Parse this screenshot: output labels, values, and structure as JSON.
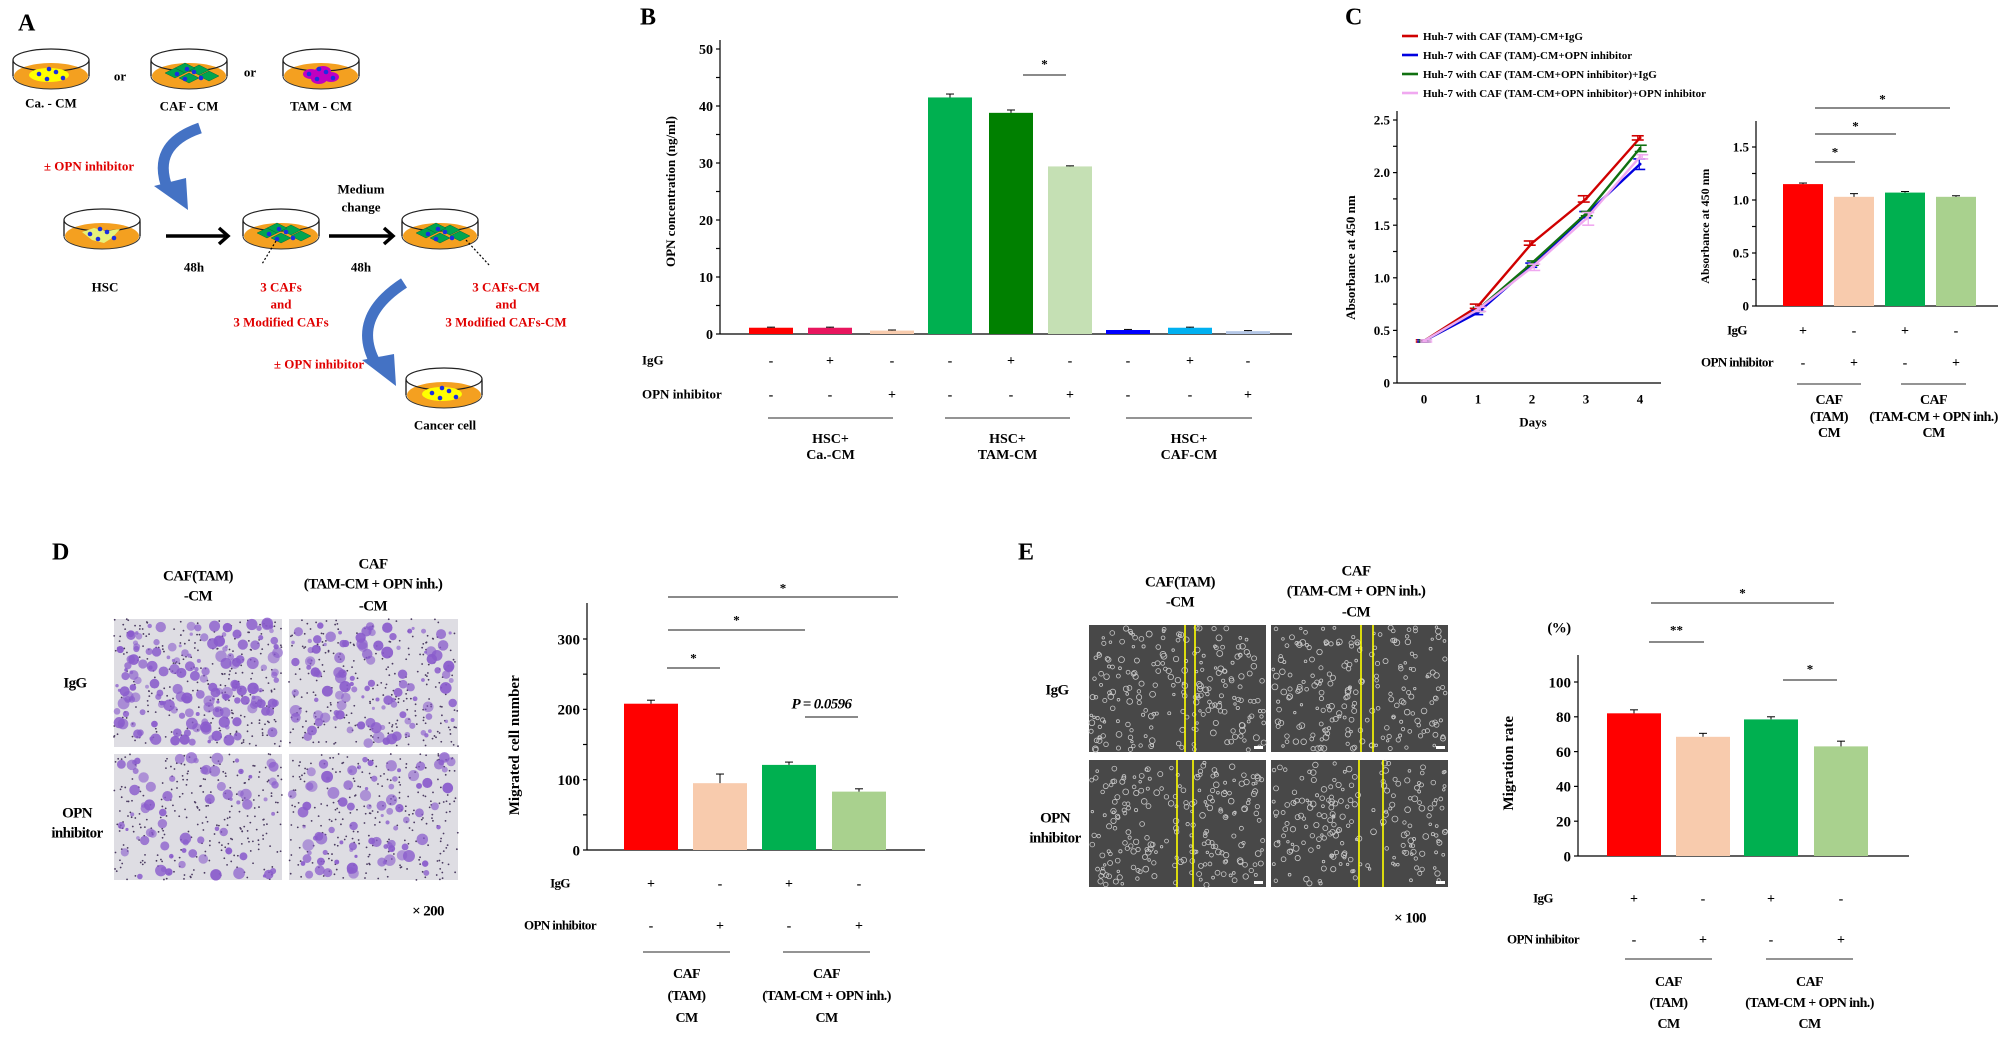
{
  "panel_a": {
    "letter": "A",
    "dishes": [
      "Ca. - CM",
      "CAF - CM",
      "TAM - CM"
    ],
    "or": "or",
    "opn_inhibitor_1": "± OPN inhibitor",
    "hsc": "HSC",
    "time1": "48h",
    "medium_change": [
      "Medium",
      "change"
    ],
    "time2": "48h",
    "cafs": [
      "3 CAFs",
      "and",
      "3 Modified CAFs"
    ],
    "cafs_cm": [
      "3 CAFs-CM",
      "and",
      "3 Modified CAFs-CM"
    ],
    "opn_inhibitor_2": "± OPN inhibitor",
    "cancer_cell": "Cancer cell",
    "colors": {
      "medium": "#f4a020",
      "arrow": "#4472c4",
      "text_highlight": "#e00000",
      "nucleus": "#1a2ee0"
    }
  },
  "panel_b": {
    "letter": "B"
  },
  "panel_c": {
    "letter": "C"
  },
  "panel_d": {
    "letter": "D",
    "columns": [
      [
        "CAF(TAM)",
        "-CM"
      ],
      [
        "CAF",
        "(TAM-CM + OPN inh.)",
        "-CM"
      ]
    ],
    "rows": [
      [
        "IgG"
      ],
      [
        "OPN",
        "inhibitor"
      ]
    ],
    "magnification": "× 200"
  },
  "panel_e": {
    "letter": "E",
    "columns": [
      [
        "CAF(TAM)",
        "-CM"
      ],
      [
        "CAF",
        "(TAM-CM + OPN inh.)",
        "-CM"
      ]
    ],
    "rows": [
      [
        "IgG"
      ],
      [
        "OPN",
        "inhibitor"
      ]
    ],
    "magnification": "× 100",
    "unit": "(%)"
  },
  "chart_data": [
    {
      "panel": "B",
      "type": "bar",
      "ylabel": "OPN concentration (ng/ml)",
      "ylim": [
        0,
        50
      ],
      "yticks": [
        0,
        10,
        20,
        30,
        40,
        50
      ],
      "ytick_labels": [
        "0",
        "10",
        "20",
        "30",
        "40",
        "50"
      ],
      "minor_step": 5,
      "values": [
        1.1,
        1.1,
        0.6,
        41.5,
        38.8,
        29.4,
        0.7,
        1.1,
        0.5
      ],
      "errors": [
        0.1,
        0.1,
        0.1,
        0.6,
        0.5,
        0.1,
        0.1,
        0.1,
        0.1
      ],
      "colors": [
        "#ff0000",
        "#e8165e",
        "#f8cbad",
        "#00b050",
        "#008000",
        "#c5e0b4",
        "#0000ff",
        "#00b0f0",
        "#b4c7e7"
      ],
      "rows": [
        {
          "label": "IgG",
          "signs": [
            "-",
            "+",
            "-",
            "-",
            "+",
            "-",
            "-",
            "+",
            "-"
          ]
        },
        {
          "label": "OPN inhibitor",
          "signs": [
            "-",
            "-",
            "+",
            "-",
            "-",
            "+",
            "-",
            "-",
            "+"
          ]
        }
      ],
      "groups": [
        {
          "label": [
            "HSC+",
            "Ca.-CM"
          ]
        },
        {
          "label": [
            "HSC+",
            "TAM-CM"
          ]
        },
        {
          "label": [
            "HSC+",
            "CAF-CM"
          ]
        }
      ],
      "significance": [
        {
          "from": 4,
          "to": 5,
          "label": "*"
        }
      ]
    },
    {
      "panel": "C",
      "type": "line",
      "xlabel": "Days",
      "ylabel": "Absorbance at 450 nm",
      "x": [
        0,
        1,
        2,
        3,
        4
      ],
      "xtick_labels": [
        "0",
        "1",
        "2",
        "3",
        "4"
      ],
      "ylim": [
        0,
        2.5
      ],
      "yticks": [
        0,
        0.5,
        1.0,
        1.5,
        2.0,
        2.5
      ],
      "ytick_labels": [
        "0",
        "0.5",
        "1.0",
        "1.5",
        "2.0",
        "2.5"
      ],
      "minor_step": 0.25,
      "legend_position": "top",
      "series": [
        {
          "name": "Huh-7 with CAF (TAM)-CM+IgG",
          "color": "#d00000",
          "values": [
            0.4,
            0.73,
            1.33,
            1.75,
            2.33
          ],
          "errors": [
            0.01,
            0.02,
            0.02,
            0.03,
            0.02
          ]
        },
        {
          "name": "Huh-7 with CAF (TAM)-CM+OPN inhibitor",
          "color": "#0000e0",
          "values": [
            0.4,
            0.67,
            1.12,
            1.6,
            2.08
          ],
          "errors": [
            0.01,
            0.02,
            0.02,
            0.03,
            0.05
          ]
        },
        {
          "name": "Huh-7 with CAF (TAM-CM+OPN inhibitor)+IgG",
          "color": "#107010",
          "values": [
            0.4,
            0.7,
            1.14,
            1.61,
            2.23
          ],
          "errors": [
            0.01,
            0.02,
            0.02,
            0.02,
            0.03
          ]
        },
        {
          "name": "Huh-7 with CAF (TAM-CM+OPN inhibitor)+OPN inhibitor",
          "color": "#f0a8f0",
          "values": [
            0.4,
            0.7,
            1.1,
            1.56,
            2.15
          ],
          "errors": [
            0.01,
            0.02,
            0.03,
            0.06,
            0.02
          ]
        }
      ]
    },
    {
      "panel": "C",
      "type": "bar",
      "ylabel": "Absorbance at 450 nm",
      "ylim": [
        0,
        1.5
      ],
      "yticks": [
        0,
        0.5,
        1.0,
        1.5
      ],
      "ytick_labels": [
        "0",
        "0.5",
        "1.0",
        "1.5"
      ],
      "minor_step": 0.25,
      "values": [
        1.15,
        1.03,
        1.07,
        1.03
      ],
      "errors": [
        0.01,
        0.03,
        0.01,
        0.01
      ],
      "colors": [
        "#ff0000",
        "#f8cbad",
        "#00b050",
        "#a9d18e"
      ],
      "rows": [
        {
          "label": "IgG",
          "signs": [
            "+",
            "-",
            "+",
            "-"
          ]
        },
        {
          "label": "OPN inhibitor",
          "signs": [
            "-",
            "+",
            "-",
            "+"
          ]
        }
      ],
      "groups": [
        {
          "label": [
            "CAF",
            "(TAM)",
            "CM"
          ]
        },
        {
          "label": [
            "CAF",
            "(TAM-CM + OPN inh.)",
            "CM"
          ]
        }
      ],
      "significance": [
        {
          "from": 0,
          "to": 1,
          "label": "*"
        },
        {
          "from": 0,
          "to": 2,
          "label": "*"
        },
        {
          "from": 0,
          "to": 3,
          "label": "*"
        }
      ]
    },
    {
      "panel": "D",
      "type": "bar",
      "ylabel": "Migrated cell number",
      "ylim": [
        0,
        350
      ],
      "yticks": [
        0,
        100,
        200,
        300
      ],
      "ytick_labels": [
        "0",
        "100",
        "200",
        "300"
      ],
      "minor_step": 50,
      "values": [
        208,
        95,
        121,
        83
      ],
      "errors": [
        5,
        13,
        4,
        4
      ],
      "colors": [
        "#ff0000",
        "#f8cbad",
        "#00b050",
        "#a9d18e"
      ],
      "rows": [
        {
          "label": "IgG",
          "signs": [
            "+",
            "-",
            "+",
            "-"
          ]
        },
        {
          "label": "OPN inhibitor",
          "signs": [
            "-",
            "+",
            "-",
            "+"
          ]
        }
      ],
      "groups": [
        {
          "label": [
            "CAF",
            "(TAM)",
            "CM"
          ]
        },
        {
          "label": [
            "CAF",
            "(TAM-CM + OPN inh.)",
            "CM"
          ]
        }
      ],
      "significance": [
        {
          "from": 0,
          "to": 1,
          "label": "*"
        },
        {
          "from": 0,
          "to": 2,
          "label": "*"
        },
        {
          "from": 0,
          "to": 3,
          "label": "*"
        },
        {
          "from": 2,
          "to": 3,
          "label": "P = 0.0596"
        }
      ]
    },
    {
      "panel": "E",
      "type": "bar",
      "ylabel": "Migration rate",
      "ylim": [
        0,
        115
      ],
      "yticks": [
        0,
        20,
        40,
        60,
        80,
        100
      ],
      "ytick_labels": [
        "0",
        "20",
        "40",
        "60",
        "80",
        "100"
      ],
      "minor_step": null,
      "values": [
        82,
        68.5,
        78.5,
        63
      ],
      "errors": [
        2,
        2,
        1.5,
        3
      ],
      "colors": [
        "#ff0000",
        "#f8cbad",
        "#00b050",
        "#a9d18e"
      ],
      "rows": [
        {
          "label": "IgG",
          "signs": [
            "+",
            "-",
            "+",
            "-"
          ]
        },
        {
          "label": "OPN inhibitor",
          "signs": [
            "-",
            "+",
            "-",
            "+"
          ]
        }
      ],
      "groups": [
        {
          "label": [
            "CAF",
            "(TAM)",
            "CM"
          ]
        },
        {
          "label": [
            "CAF",
            "(TAM-CM + OPN inh.)",
            "CM"
          ]
        }
      ],
      "significance": [
        {
          "from": 0,
          "to": 1,
          "label": "**"
        },
        {
          "from": 0,
          "to": 3,
          "label": "*"
        },
        {
          "from": 2,
          "to": 3,
          "label": "*"
        }
      ]
    }
  ]
}
